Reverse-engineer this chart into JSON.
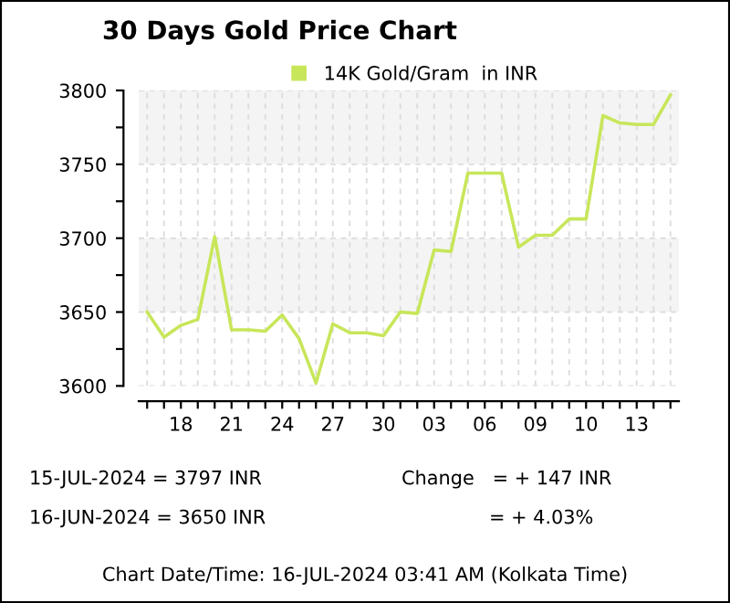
{
  "chart_data": {
    "type": "line",
    "title": "30 Days Gold Price Chart",
    "categories": [
      null,
      null,
      "18",
      null,
      null,
      "21",
      null,
      null,
      "24",
      null,
      null,
      "27",
      null,
      null,
      "30",
      null,
      null,
      "03",
      null,
      null,
      "06",
      null,
      null,
      "09",
      null,
      null,
      "10",
      null,
      null,
      "13",
      null,
      null
    ],
    "series": [
      {
        "name": "14K Gold/Gram  in INR",
        "color": "#c8e65a",
        "values": [
          3650,
          3633,
          3641,
          3645,
          3701,
          3638,
          3638,
          3637,
          3648,
          3632,
          3602,
          3642,
          3636,
          3636,
          3634,
          3650,
          3649,
          3692,
          3691,
          3744,
          3744,
          3744,
          3694,
          3702,
          3702,
          3713,
          3713,
          3783,
          3778,
          3777,
          3777,
          3797
        ]
      }
    ],
    "ylim": [
      3600,
      3800
    ],
    "yticks": [
      3600,
      {
        "value": 3625,
        "label": null
      },
      3650,
      {
        "value": 3675,
        "label": null
      },
      3700,
      {
        "value": 3725,
        "label": null
      },
      3750,
      {
        "value": 3775,
        "label": null
      },
      3800
    ],
    "bands": [
      {
        "axis": "y",
        "from": 3650,
        "to": 3700,
        "color": "#f4f4f4"
      },
      {
        "axis": "y",
        "from": 3750,
        "to": 3800,
        "color": "#f4f4f4"
      }
    ],
    "grid": true,
    "legend": "top",
    "marker": "none",
    "line_style": "solid",
    "annotations": [
      "15-JUL-2024 = 3797 INR",
      "16-JUN-2024 = 3650 INR",
      "Change   = + 147 INR",
      "= + 4.03%",
      "Chart Date/Time: 16-JUL-2024 03:41 AM (Kolkata Time)"
    ]
  }
}
